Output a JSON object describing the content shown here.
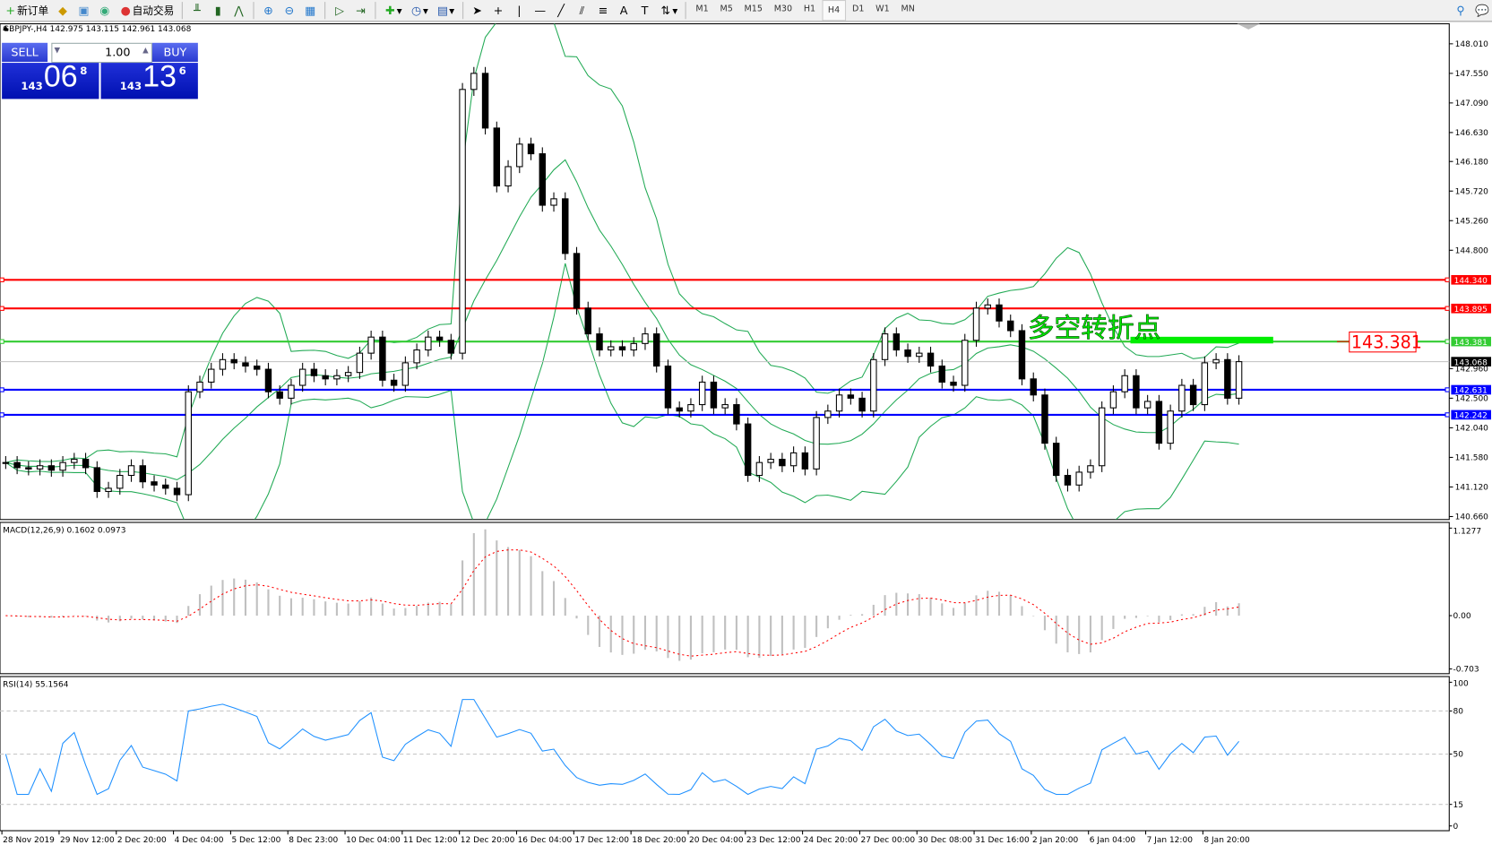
{
  "toolbar": {
    "new_order": "新订单",
    "auto_trading": "自动交易",
    "timeframes": [
      "M1",
      "M5",
      "M15",
      "M30",
      "H1",
      "H4",
      "D1",
      "W1",
      "MN"
    ],
    "active_timeframe": "H4"
  },
  "symbol_info": "GBPJPY-,H4  142.975 143.115 142.961 143.068",
  "trade_panel": {
    "sell_label": "SELL",
    "buy_label": "BUY",
    "lot": "1.00",
    "sell_price": {
      "prefix": "143",
      "big": "06",
      "sup": "8"
    },
    "buy_price": {
      "prefix": "143",
      "big": "13",
      "sup": "6"
    }
  },
  "annotation": {
    "text": "多空转折点",
    "price_label": "143.381",
    "color": "#00ee00"
  },
  "levels": [
    {
      "price": 144.34,
      "label": "144.340",
      "color": "#ff0000"
    },
    {
      "price": 143.895,
      "label": "143.895",
      "color": "#ff0000"
    },
    {
      "price": 143.381,
      "label": "143.381",
      "color": "#33cc33"
    },
    {
      "price": 142.631,
      "label": "142.631",
      "color": "#0000ff"
    },
    {
      "price": 142.242,
      "label": "142.242",
      "color": "#0000ff"
    }
  ],
  "current_price": {
    "price": 143.068,
    "label": "143.068"
  },
  "price_ticks": [
    "148.010",
    "147.550",
    "147.090",
    "146.630",
    "146.180",
    "145.720",
    "145.260",
    "144.800",
    "142.960",
    "142.500",
    "142.040",
    "141.580",
    "141.120",
    "140.660"
  ],
  "macd": {
    "label": "MACD(12,26,9) 0.1602 0.0973",
    "ticks": [
      "1.1277",
      "0.00",
      "-0.703"
    ]
  },
  "rsi": {
    "label": "RSI(14) 55.1564",
    "ticks": [
      "100",
      "80",
      "50",
      "15",
      "0"
    ]
  },
  "date_ticks": [
    "28 Nov 2019",
    "29 Nov 12:00",
    "2 Dec 20:00",
    "4 Dec 04:00",
    "5 Dec 12:00",
    "8 Dec 23:00",
    "10 Dec 04:00",
    "11 Dec 12:00",
    "12 Dec 20:00",
    "16 Dec 04:00",
    "17 Dec 12:00",
    "18 Dec 20:00",
    "20 Dec 04:00",
    "23 Dec 12:00",
    "24 Dec 20:00",
    "27 Dec 00:00",
    "30 Dec 08:00",
    "31 Dec 16:00",
    "2 Jan 20:00",
    "6 Jan 04:00",
    "7 Jan 12:00",
    "8 Jan 20:00"
  ],
  "chart_data": {
    "type": "candlestick",
    "symbol": "GBPJPY-",
    "timeframe": "H4",
    "ylim": [
      140.66,
      148.01
    ],
    "closes": [
      141.5,
      141.42,
      141.4,
      141.45,
      141.38,
      141.5,
      141.55,
      141.42,
      141.05,
      141.1,
      141.3,
      141.45,
      141.2,
      141.15,
      141.1,
      141.0,
      142.6,
      142.75,
      142.95,
      143.1,
      143.05,
      143.0,
      142.95,
      142.6,
      142.5,
      142.7,
      142.95,
      142.85,
      142.8,
      142.85,
      142.9,
      143.2,
      143.45,
      142.78,
      142.7,
      143.05,
      143.25,
      143.45,
      143.4,
      143.2,
      147.3,
      147.55,
      146.7,
      145.8,
      146.1,
      146.45,
      146.3,
      145.5,
      145.6,
      144.75,
      143.9,
      143.5,
      143.25,
      143.3,
      143.25,
      143.35,
      143.5,
      143.0,
      142.35,
      142.3,
      142.4,
      142.75,
      142.35,
      142.4,
      142.1,
      141.3,
      141.5,
      141.55,
      141.45,
      141.65,
      141.4,
      142.2,
      142.3,
      142.55,
      142.5,
      142.3,
      143.1,
      143.5,
      143.25,
      143.15,
      143.2,
      143.0,
      142.75,
      142.7,
      143.4,
      143.9,
      143.95,
      143.7,
      143.55,
      142.8,
      142.55,
      141.8,
      141.3,
      141.15,
      141.35,
      141.45,
      142.35,
      142.6,
      142.85,
      142.35,
      142.45,
      141.8,
      142.3,
      142.7,
      142.4,
      143.05,
      143.1,
      142.5,
      143.068
    ],
    "indicators": [
      "Bollinger Bands",
      "MACD(12,26,9)",
      "RSI(14)"
    ],
    "colors": {
      "bands": "#22aa55",
      "macd_hist": "#c0c0c0",
      "macd_signal": "#ff0000",
      "rsi": "#1e90ff"
    }
  }
}
